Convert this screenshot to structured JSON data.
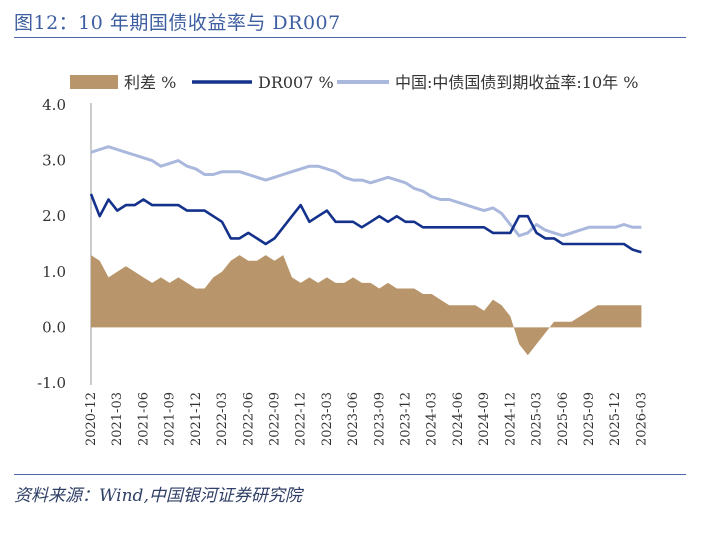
{
  "figure": {
    "title": "图12：10 年期国债收益率与 DR007",
    "source": "资料来源：Wind,中国银河证券研究院"
  },
  "colors": {
    "spread": "#b8956a",
    "dr007": "#14328c",
    "cgb10y": "#a9b8dc",
    "rule": "#4a66a8"
  },
  "chart_data": {
    "type": "line",
    "title": "",
    "xlabel": "",
    "ylabel": "",
    "ylim": [
      -1.0,
      4.0
    ],
    "yticks": [
      "4.0",
      "3.0",
      "2.0",
      "1.0",
      "0.0",
      "-1.0"
    ],
    "xticks": [
      "2020-12",
      "2021-03",
      "2021-06",
      "2021-09",
      "2021-12",
      "2022-03",
      "2022-06",
      "2022-09",
      "2022-12",
      "2023-03",
      "2023-06",
      "2023-09",
      "2023-12",
      "2024-03",
      "2024-06",
      "2024-09",
      "2024-12",
      "2025-03",
      "2025-06",
      "2025-09",
      "2025-12",
      "2026-03"
    ],
    "legend_position": "top",
    "x": [
      "2020-12",
      "2021-01",
      "2021-02",
      "2021-03",
      "2021-04",
      "2021-05",
      "2021-06",
      "2021-07",
      "2021-08",
      "2021-09",
      "2021-10",
      "2021-11",
      "2021-12",
      "2022-01",
      "2022-02",
      "2022-03",
      "2022-04",
      "2022-05",
      "2022-06",
      "2022-07",
      "2022-08",
      "2022-09",
      "2022-10",
      "2022-11",
      "2022-12",
      "2023-01",
      "2023-02",
      "2023-03",
      "2023-04",
      "2023-05",
      "2023-06",
      "2023-07",
      "2023-08",
      "2023-09",
      "2023-10",
      "2023-11",
      "2023-12",
      "2024-01",
      "2024-02",
      "2024-03",
      "2024-04",
      "2024-05",
      "2024-06",
      "2024-07",
      "2024-08",
      "2024-09",
      "2024-10",
      "2024-11",
      "2024-12",
      "2025-01",
      "2025-02",
      "2025-03",
      "2025-04",
      "2025-05",
      "2025-06",
      "2025-07",
      "2025-08",
      "2025-09",
      "2025-10",
      "2025-11",
      "2025-12",
      "2026-01",
      "2026-02",
      "2026-03"
    ],
    "series": [
      {
        "name": "利差 %",
        "style": "area",
        "values": [
          1.3,
          1.2,
          0.9,
          1.0,
          1.1,
          1.0,
          0.9,
          0.8,
          0.9,
          0.8,
          0.9,
          0.8,
          0.7,
          0.7,
          0.9,
          1.0,
          1.2,
          1.3,
          1.2,
          1.2,
          1.3,
          1.2,
          1.3,
          0.9,
          0.8,
          0.9,
          0.8,
          0.9,
          0.8,
          0.8,
          0.9,
          0.8,
          0.8,
          0.7,
          0.8,
          0.7,
          0.7,
          0.7,
          0.6,
          0.6,
          0.5,
          0.4,
          0.4,
          0.4,
          0.4,
          0.3,
          0.5,
          0.4,
          0.2,
          -0.3,
          -0.5,
          -0.3,
          -0.1,
          0.1,
          0.1,
          0.1,
          0.2,
          0.3,
          0.4,
          0.4,
          0.4,
          0.4,
          0.4,
          0.4
        ]
      },
      {
        "name": "DR007 %",
        "style": "line",
        "values": [
          2.4,
          2.0,
          2.3,
          2.1,
          2.2,
          2.2,
          2.3,
          2.2,
          2.2,
          2.2,
          2.2,
          2.1,
          2.1,
          2.1,
          2.0,
          1.9,
          1.6,
          1.6,
          1.7,
          1.6,
          1.5,
          1.6,
          1.8,
          2.0,
          2.2,
          1.9,
          2.0,
          2.1,
          1.9,
          1.9,
          1.9,
          1.8,
          1.9,
          2.0,
          1.9,
          2.0,
          1.9,
          1.9,
          1.8,
          1.8,
          1.8,
          1.8,
          1.8,
          1.8,
          1.8,
          1.8,
          1.7,
          1.7,
          1.7,
          2.0,
          2.0,
          1.7,
          1.6,
          1.6,
          1.5,
          1.5,
          1.5,
          1.5,
          1.5,
          1.5,
          1.5,
          1.5,
          1.4,
          1.35
        ]
      },
      {
        "name": "中国:中债国债到期收益率:10年 %",
        "style": "line",
        "values": [
          3.15,
          3.2,
          3.25,
          3.2,
          3.15,
          3.1,
          3.05,
          3.0,
          2.9,
          2.95,
          3.0,
          2.9,
          2.85,
          2.75,
          2.75,
          2.8,
          2.8,
          2.8,
          2.75,
          2.7,
          2.65,
          2.7,
          2.75,
          2.8,
          2.85,
          2.9,
          2.9,
          2.85,
          2.8,
          2.7,
          2.65,
          2.65,
          2.6,
          2.65,
          2.7,
          2.65,
          2.6,
          2.5,
          2.45,
          2.35,
          2.3,
          2.3,
          2.25,
          2.2,
          2.15,
          2.1,
          2.15,
          2.05,
          1.85,
          1.65,
          1.7,
          1.85,
          1.75,
          1.7,
          1.65,
          1.7,
          1.75,
          1.8,
          1.8,
          1.8,
          1.8,
          1.85,
          1.8,
          1.8
        ]
      }
    ]
  }
}
